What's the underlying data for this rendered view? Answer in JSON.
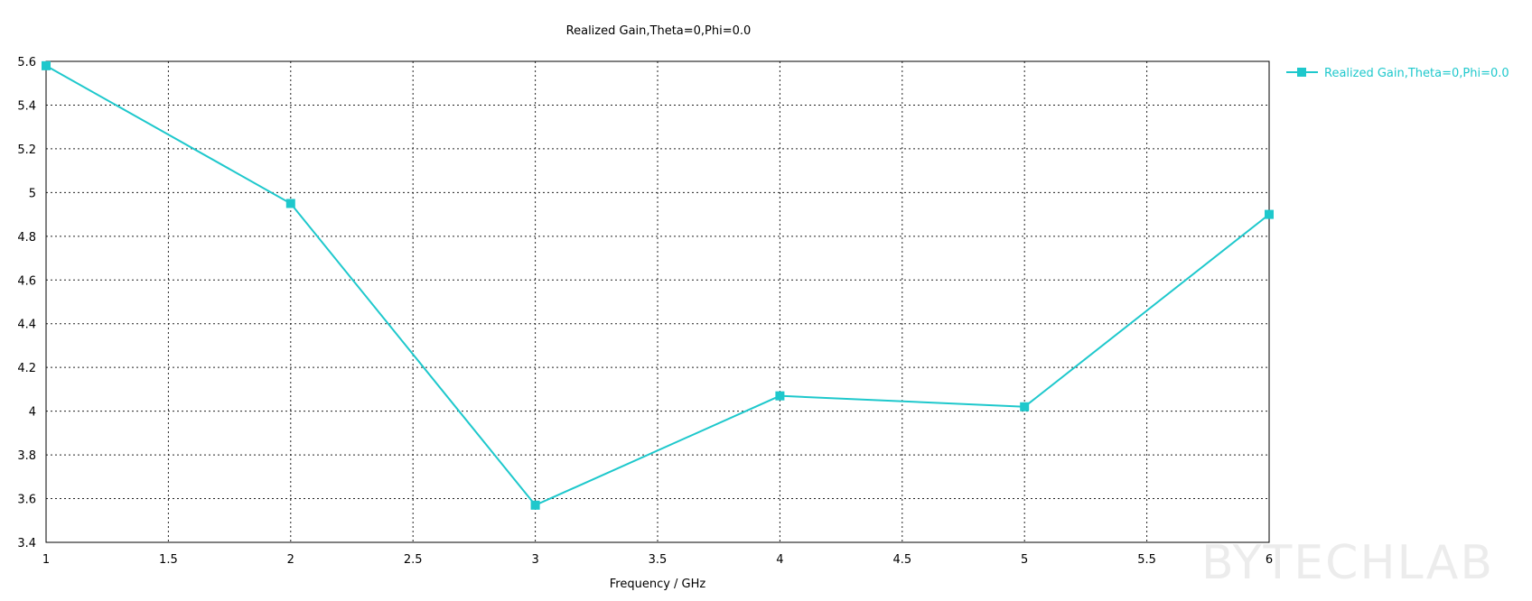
{
  "chart_data": {
    "type": "line",
    "title": "Realized Gain,Theta=0,Phi=0.0",
    "xlabel": "Frequency / GHz",
    "ylabel": "",
    "xlim": [
      1,
      6
    ],
    "ylim": [
      3.4,
      5.6
    ],
    "x_ticks": [
      "1",
      "1.5",
      "2",
      "2.5",
      "3",
      "3.5",
      "4",
      "4.5",
      "5",
      "5.5",
      "6"
    ],
    "y_ticks": [
      "3.4",
      "3.6",
      "3.8",
      "4",
      "4.2",
      "4.4",
      "4.6",
      "4.8",
      "5",
      "5.2",
      "5.4",
      "5.6"
    ],
    "grid": true,
    "legend_position": "top-right",
    "series": [
      {
        "name": "Realized Gain,Theta=0,Phi=0.0",
        "color": "#1ec8cc",
        "marker": "square",
        "x": [
          1,
          2,
          3,
          4,
          5,
          6
        ],
        "y": [
          5.58,
          4.95,
          3.57,
          4.07,
          4.02,
          4.9
        ]
      }
    ]
  },
  "watermark": "BYTECHLAB"
}
